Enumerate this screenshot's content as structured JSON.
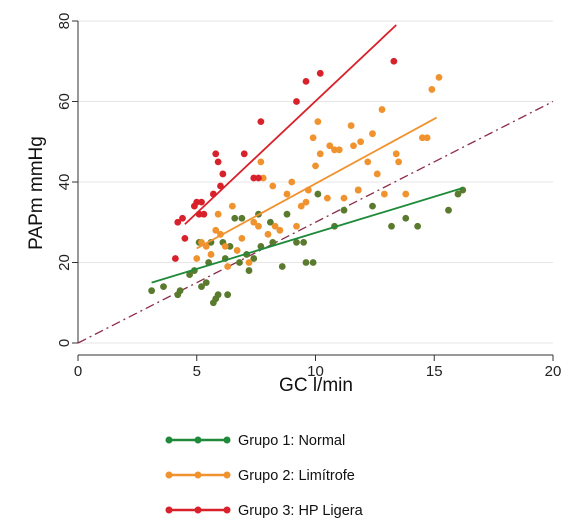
{
  "chart_data": {
    "type": "scatter",
    "xlabel": "GC l/min",
    "ylabel": "PAPm mmHg",
    "xlim": [
      0,
      20
    ],
    "ylim": [
      0,
      80
    ],
    "xticks": [
      "0",
      "5",
      "10",
      "15",
      "20"
    ],
    "yticks": [
      "0",
      "20",
      "40",
      "60",
      "80"
    ],
    "grid": true,
    "legend_position": "bottom",
    "reference_line": {
      "x": [
        0,
        20
      ],
      "y": [
        0,
        60
      ],
      "color": "#8b2a4a",
      "style": "dash-dot"
    },
    "series": [
      {
        "name": "Grupo 1: Normal",
        "color": "#5a7a2e",
        "line_color": "#1f8a3a",
        "fit": {
          "x": [
            3.1,
            16.2
          ],
          "y": [
            15,
            38.5
          ]
        },
        "points": [
          [
            3.1,
            13
          ],
          [
            3.6,
            14
          ],
          [
            4.2,
            12
          ],
          [
            4.3,
            13
          ],
          [
            4.7,
            17
          ],
          [
            4.9,
            18
          ],
          [
            5.1,
            25
          ],
          [
            5.2,
            14
          ],
          [
            5.4,
            15
          ],
          [
            5.5,
            20
          ],
          [
            5.6,
            25
          ],
          [
            5.7,
            10
          ],
          [
            5.8,
            11
          ],
          [
            5.9,
            12
          ],
          [
            6.1,
            25
          ],
          [
            6.2,
            21
          ],
          [
            6.3,
            12
          ],
          [
            6.4,
            24
          ],
          [
            6.6,
            31
          ],
          [
            6.8,
            20
          ],
          [
            6.9,
            31
          ],
          [
            7.1,
            22
          ],
          [
            7.2,
            18
          ],
          [
            7.4,
            21
          ],
          [
            7.6,
            32
          ],
          [
            7.7,
            24
          ],
          [
            8.1,
            30
          ],
          [
            8.2,
            25
          ],
          [
            8.6,
            19
          ],
          [
            8.8,
            32
          ],
          [
            9.2,
            25
          ],
          [
            9.5,
            25
          ],
          [
            9.6,
            20
          ],
          [
            9.9,
            20
          ],
          [
            10.1,
            37
          ],
          [
            10.8,
            29
          ],
          [
            11.2,
            33
          ],
          [
            11.8,
            38
          ],
          [
            12.4,
            34
          ],
          [
            13.2,
            29
          ],
          [
            13.8,
            31
          ],
          [
            14.3,
            29
          ],
          [
            15.6,
            33
          ],
          [
            16.0,
            37
          ],
          [
            16.2,
            38
          ]
        ]
      },
      {
        "name": "Grupo 2: Limítrofe",
        "color": "#f0922e",
        "line_color": "#f0922e",
        "fit": {
          "x": [
            5.0,
            15.1
          ],
          "y": [
            23.5,
            56
          ]
        },
        "points": [
          [
            5.0,
            21
          ],
          [
            5.2,
            25
          ],
          [
            5.4,
            24
          ],
          [
            5.6,
            22
          ],
          [
            5.8,
            28
          ],
          [
            5.9,
            32
          ],
          [
            6.0,
            27
          ],
          [
            6.2,
            24
          ],
          [
            6.3,
            19
          ],
          [
            6.5,
            34
          ],
          [
            6.7,
            23
          ],
          [
            6.9,
            26
          ],
          [
            7.2,
            20
          ],
          [
            7.4,
            30
          ],
          [
            7.6,
            29
          ],
          [
            7.7,
            45
          ],
          [
            7.8,
            41
          ],
          [
            8.0,
            27
          ],
          [
            8.2,
            39
          ],
          [
            8.3,
            29
          ],
          [
            8.5,
            28
          ],
          [
            8.8,
            37
          ],
          [
            9.0,
            40
          ],
          [
            9.2,
            29
          ],
          [
            9.4,
            34
          ],
          [
            9.6,
            35
          ],
          [
            9.7,
            38
          ],
          [
            9.9,
            51
          ],
          [
            10.0,
            44
          ],
          [
            10.1,
            55
          ],
          [
            10.2,
            47
          ],
          [
            10.5,
            36
          ],
          [
            10.6,
            49
          ],
          [
            10.8,
            48
          ],
          [
            11.0,
            48
          ],
          [
            11.2,
            36
          ],
          [
            11.5,
            54
          ],
          [
            11.6,
            49
          ],
          [
            11.8,
            38
          ],
          [
            11.9,
            50
          ],
          [
            12.2,
            45
          ],
          [
            12.4,
            52
          ],
          [
            12.6,
            42
          ],
          [
            12.8,
            58
          ],
          [
            12.9,
            37
          ],
          [
            13.4,
            47
          ],
          [
            13.5,
            45
          ],
          [
            13.8,
            37
          ],
          [
            14.5,
            51
          ],
          [
            14.7,
            51
          ],
          [
            14.9,
            63
          ],
          [
            15.2,
            66
          ]
        ]
      },
      {
        "name": "Grupo 3: HP Ligera",
        "color": "#d8212a",
        "line_color": "#d8212a",
        "fit": {
          "x": [
            4.5,
            13.4
          ],
          "y": [
            29.5,
            79
          ]
        },
        "points": [
          [
            4.1,
            21
          ],
          [
            4.2,
            30
          ],
          [
            4.4,
            31
          ],
          [
            4.5,
            26
          ],
          [
            4.9,
            34
          ],
          [
            5.0,
            35
          ],
          [
            5.1,
            32
          ],
          [
            5.2,
            35
          ],
          [
            5.3,
            32
          ],
          [
            5.7,
            37
          ],
          [
            5.8,
            47
          ],
          [
            5.9,
            45
          ],
          [
            6.0,
            39
          ],
          [
            6.1,
            42
          ],
          [
            7.0,
            47
          ],
          [
            7.4,
            41
          ],
          [
            7.6,
            41
          ],
          [
            7.7,
            55
          ],
          [
            9.2,
            60
          ],
          [
            9.6,
            65
          ],
          [
            10.2,
            67
          ],
          [
            13.3,
            70
          ]
        ]
      }
    ]
  }
}
